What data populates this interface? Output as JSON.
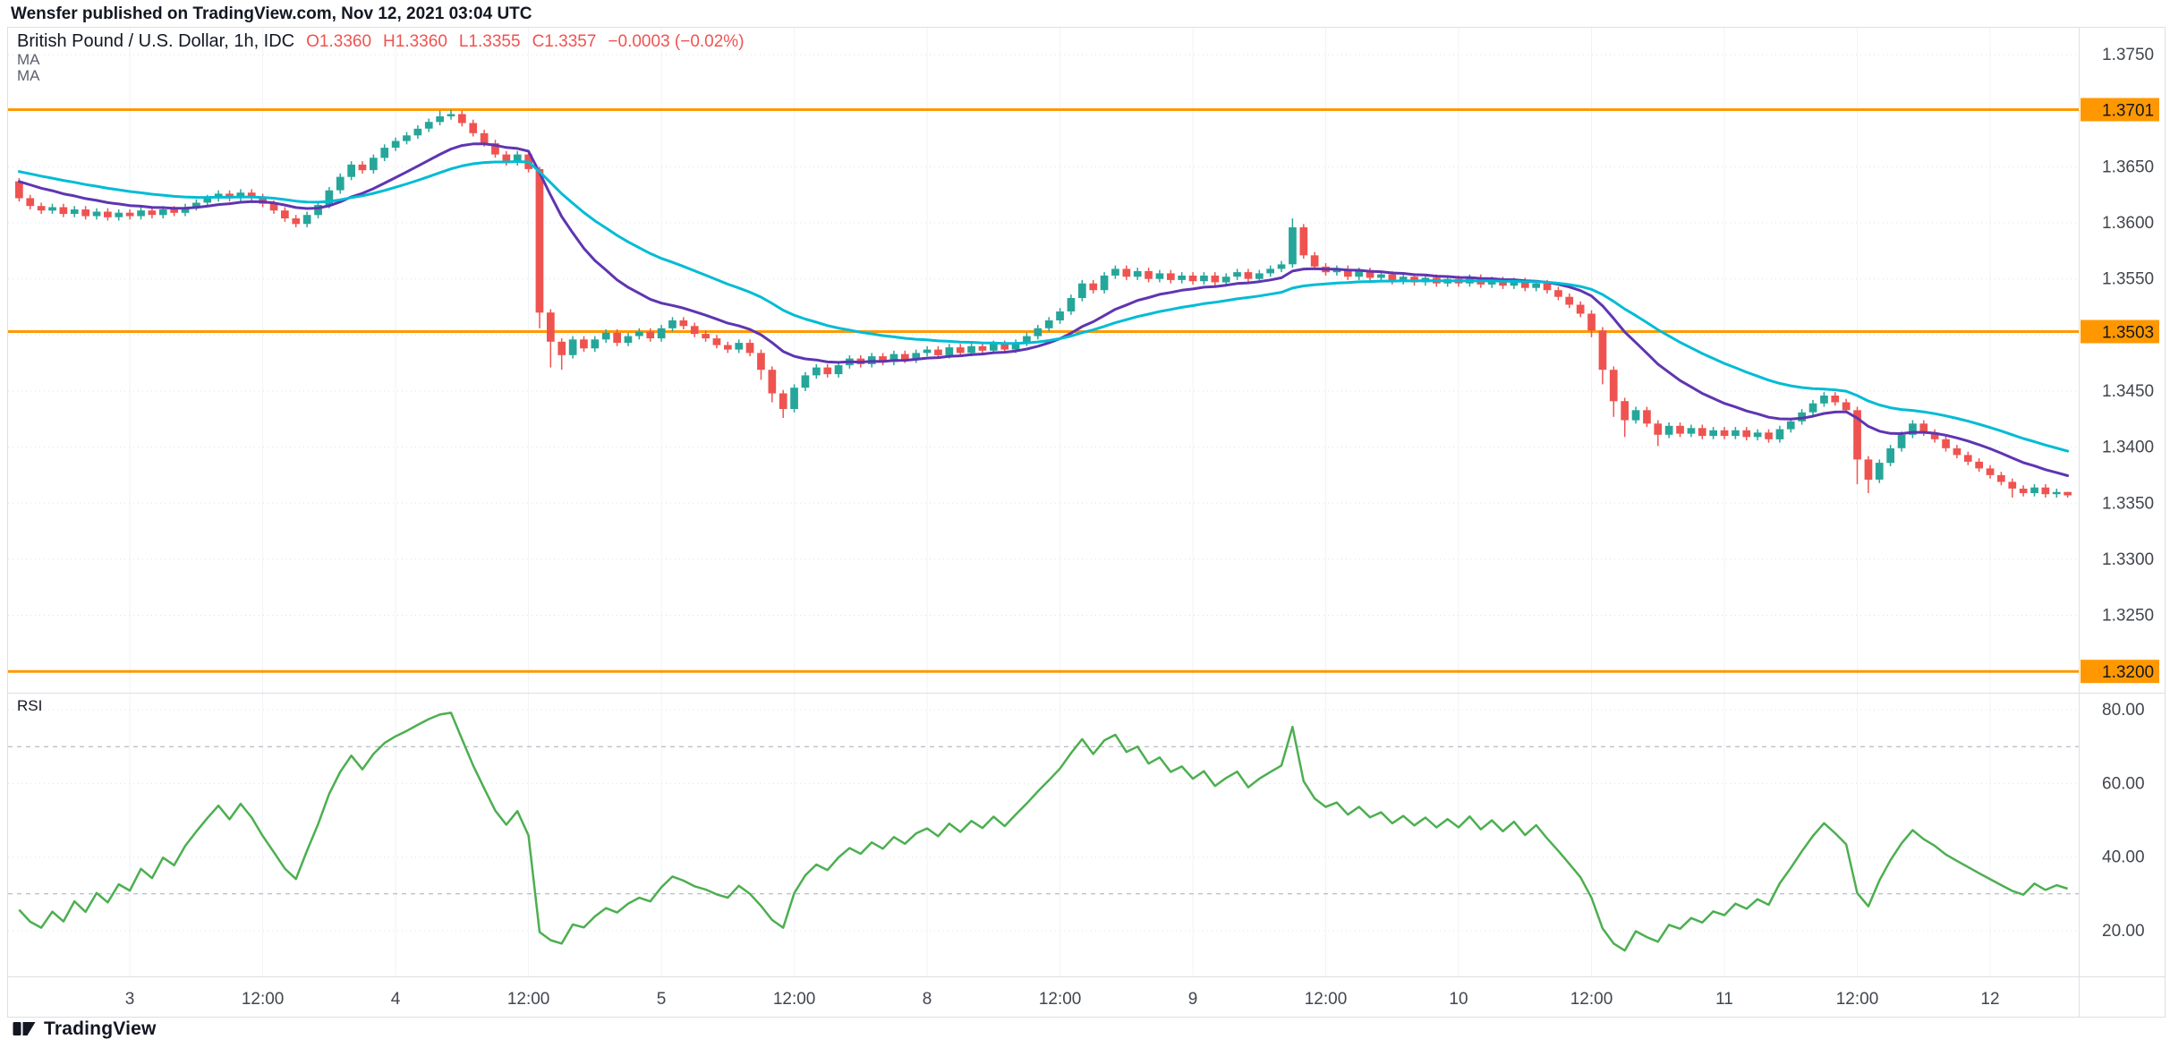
{
  "publish_bar": {
    "text": "Wensfer published on TradingView.com, Nov 12, 2021 03:04 UTC"
  },
  "header": {
    "symbol_title": "British Pound / U.S. Dollar, 1h, IDC",
    "ohlc": {
      "open": "O1.3360",
      "high": "H1.3360",
      "low": "L1.3355",
      "close": "C1.3357",
      "change": "−0.0003 (−0.02%)"
    },
    "ohlc_color": "#ef5350"
  },
  "indicators": {
    "ma1_label": "MA",
    "ma2_label": "MA",
    "rsi_label": "RSI"
  },
  "footer": {
    "brand": "TradingView"
  },
  "colors": {
    "up": "#26a69a",
    "down": "#ef5350",
    "level": "#ff9800",
    "grid": "#dfe3ea",
    "grid_v": "#f1f3f7",
    "axis_text": "#42464e",
    "rsi_band": "#a6abb5",
    "separator": "#dcdfe5",
    "level_label_text": "#131722"
  },
  "chart_data": {
    "type": "candlestick",
    "title": "British Pound / U.S. Dollar",
    "interval": "1h",
    "exchange": "IDC",
    "price_axis": {
      "min": 1.3181,
      "max": 1.3774,
      "ticks": [
        1.375,
        1.37,
        1.365,
        1.36,
        1.355,
        1.35,
        1.345,
        1.34,
        1.335,
        1.33,
        1.325,
        1.32
      ]
    },
    "levels": [
      {
        "value": 1.3701
      },
      {
        "value": 1.3503
      },
      {
        "value": 1.32
      }
    ],
    "time_axis": [
      {
        "i": 10,
        "label": "3"
      },
      {
        "i": 22,
        "label": "12:00"
      },
      {
        "i": 34,
        "label": "4"
      },
      {
        "i": 46,
        "label": "12:00"
      },
      {
        "i": 58,
        "label": "5"
      },
      {
        "i": 70,
        "label": "12:00"
      },
      {
        "i": 82,
        "label": "8"
      },
      {
        "i": 94,
        "label": "12:00"
      },
      {
        "i": 106,
        "label": "9"
      },
      {
        "i": 118,
        "label": "12:00"
      },
      {
        "i": 130,
        "label": "10"
      },
      {
        "i": 142,
        "label": "12:00"
      },
      {
        "i": 154,
        "label": "11"
      },
      {
        "i": 166,
        "label": "12:00"
      },
      {
        "i": 178,
        "label": "12"
      }
    ],
    "first_open": 1.3637,
    "default_wick": 0.0003,
    "closes": [
      1.3622,
      1.3615,
      1.3611,
      1.3614,
      1.3608,
      1.3612,
      1.3606,
      1.361,
      1.3605,
      1.3609,
      1.3606,
      1.3611,
      1.3607,
      1.3612,
      1.3609,
      1.3614,
      1.3618,
      1.3622,
      1.3626,
      1.3622,
      1.3627,
      1.3623,
      1.3617,
      1.3611,
      1.3604,
      1.3599,
      1.3607,
      1.3616,
      1.3629,
      1.3641,
      1.3652,
      1.3647,
      1.3658,
      1.3667,
      1.3673,
      1.3678,
      1.3684,
      1.369,
      1.3695,
      1.3697,
      1.3689,
      1.368,
      1.3671,
      1.3661,
      1.3654,
      1.3661,
      1.3648,
      1.352,
      1.3494,
      1.3482,
      1.3496,
      1.3488,
      1.3496,
      1.3502,
      1.3493,
      1.3499,
      1.3503,
      1.3497,
      1.3506,
      1.3513,
      1.3508,
      1.3501,
      1.3497,
      1.3491,
      1.3487,
      1.3493,
      1.3484,
      1.3469,
      1.3448,
      1.3434,
      1.3453,
      1.3464,
      1.3471,
      1.3465,
      1.3473,
      1.3479,
      1.3474,
      1.3481,
      1.3476,
      1.3483,
      1.3478,
      1.3484,
      1.3487,
      1.3482,
      1.3489,
      1.3484,
      1.349,
      1.3486,
      1.3492,
      1.3487,
      1.3493,
      1.3499,
      1.3506,
      1.3513,
      1.3521,
      1.3533,
      1.3546,
      1.354,
      1.3553,
      1.3559,
      1.3552,
      1.3557,
      1.355,
      1.3555,
      1.3549,
      1.3553,
      1.3548,
      1.3553,
      1.3547,
      1.3552,
      1.3556,
      1.355,
      1.3555,
      1.3559,
      1.3563,
      1.3596,
      1.3571,
      1.3561,
      1.3556,
      1.3559,
      1.3552,
      1.3557,
      1.3551,
      1.3554,
      1.3548,
      1.3552,
      1.3547,
      1.3551,
      1.3546,
      1.355,
      1.3546,
      1.3551,
      1.3545,
      1.3549,
      1.3544,
      1.3548,
      1.3542,
      1.3546,
      1.354,
      1.3534,
      1.3527,
      1.3519,
      1.3504,
      1.3469,
      1.3441,
      1.3424,
      1.3433,
      1.3421,
      1.3411,
      1.3419,
      1.3412,
      1.3417,
      1.341,
      1.3415,
      1.341,
      1.3415,
      1.3409,
      1.3413,
      1.3407,
      1.3416,
      1.3423,
      1.3431,
      1.3439,
      1.3446,
      1.344,
      1.3433,
      1.3389,
      1.3371,
      1.3386,
      1.3399,
      1.3411,
      1.3421,
      1.3413,
      1.3407,
      1.3399,
      1.3393,
      1.3387,
      1.3381,
      1.3375,
      1.3369,
      1.3363,
      1.3359,
      1.3364,
      1.3358,
      1.336,
      1.3357
    ],
    "wick_overrides": {
      "38": {
        "h": 1.37
      },
      "39": {
        "h": 1.3701
      },
      "47": {
        "h": 1.365,
        "l": 1.3506
      },
      "48": {
        "l": 1.3471
      },
      "49": {
        "l": 1.3469
      },
      "67": {
        "l": 1.346
      },
      "68": {
        "l": 1.344
      },
      "69": {
        "l": 1.3426
      },
      "115": {
        "h": 1.3604
      },
      "142": {
        "l": 1.3498
      },
      "143": {
        "l": 1.3456
      },
      "144": {
        "l": 1.3427
      },
      "145": {
        "l": 1.3409
      },
      "148": {
        "l": 1.3401
      },
      "166": {
        "l": 1.3367
      },
      "167": {
        "l": 1.3359
      },
      "180": {
        "l": 1.3355
      },
      "185": {
        "o": 1.336,
        "h": 1.336,
        "l": 1.3355
      }
    },
    "warmup_closes": [
      1.3688,
      1.3684,
      1.3686,
      1.368,
      1.3682,
      1.3676,
      1.3678,
      1.3672,
      1.3674,
      1.3668,
      1.367,
      1.3664,
      1.3666,
      1.366,
      1.3662,
      1.3656,
      1.3658,
      1.3652,
      1.3654,
      1.3649,
      1.3651,
      1.3646,
      1.3648,
      1.3644,
      1.3646,
      1.3642,
      1.3644,
      1.364,
      1.3642,
      1.3638,
      1.364,
      1.3637,
      1.3639,
      1.3636,
      1.3638,
      1.3635,
      1.3637,
      1.3634,
      1.3636,
      1.3637
    ],
    "ma": [
      {
        "length": 14,
        "color": "#5e35b1"
      },
      {
        "length": 30,
        "color": "#00bcd4"
      }
    ],
    "rsi": {
      "length": 14,
      "color": "#4caf50",
      "axis": {
        "min": 7.6,
        "max": 84.4,
        "ticks": [
          80,
          60,
          40,
          20
        ],
        "bands": [
          70,
          30
        ]
      }
    }
  }
}
